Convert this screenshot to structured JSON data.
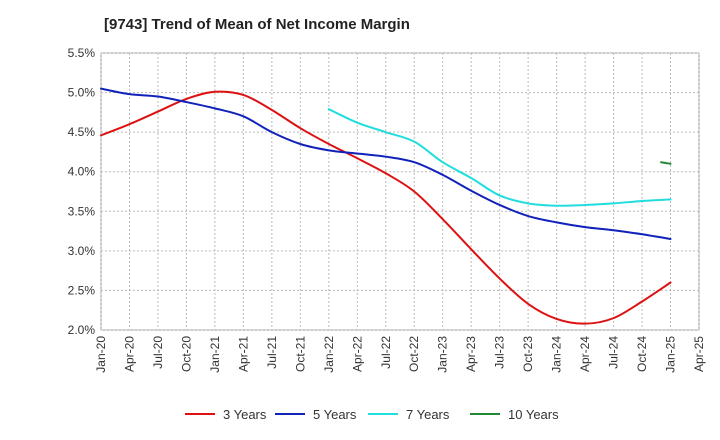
{
  "chart_data": {
    "type": "line",
    "title": "[9743]  Trend of Mean of Net Income Margin",
    "xlabel": "",
    "ylabel": "",
    "x_ticks": [
      "Jan-20",
      "Apr-20",
      "Jul-20",
      "Oct-20",
      "Jan-21",
      "Apr-21",
      "Jul-21",
      "Oct-21",
      "Jan-22",
      "Apr-22",
      "Jul-22",
      "Oct-22",
      "Jan-23",
      "Apr-23",
      "Jul-23",
      "Oct-23",
      "Jan-24",
      "Apr-24",
      "Jul-24",
      "Oct-24",
      "Jan-25",
      "Apr-25"
    ],
    "y_ticks": [
      "2.0%",
      "2.5%",
      "3.0%",
      "3.5%",
      "4.0%",
      "4.5%",
      "5.0%",
      "5.5%"
    ],
    "ylim": [
      2.0,
      5.5
    ],
    "grid": true,
    "legend_position": "bottom",
    "series": [
      {
        "name": "3 Years",
        "color": "#dd1111",
        "points": [
          [
            "Jan-20",
            4.46
          ],
          [
            "Apr-20",
            4.6
          ],
          [
            "Jul-20",
            4.76
          ],
          [
            "Oct-20",
            4.92
          ],
          [
            "Jan-21",
            5.01
          ],
          [
            "Apr-21",
            4.97
          ],
          [
            "Jul-21",
            4.78
          ],
          [
            "Oct-21",
            4.55
          ],
          [
            "Jan-22",
            4.35
          ],
          [
            "Apr-22",
            4.17
          ],
          [
            "Jul-22",
            3.98
          ],
          [
            "Oct-22",
            3.75
          ],
          [
            "Jan-23",
            3.4
          ],
          [
            "Apr-23",
            3.02
          ],
          [
            "Jul-23",
            2.65
          ],
          [
            "Oct-23",
            2.33
          ],
          [
            "Jan-24",
            2.14
          ],
          [
            "Apr-24",
            2.08
          ],
          [
            "Jul-24",
            2.15
          ],
          [
            "Oct-24",
            2.36
          ],
          [
            "Jan-25",
            2.6
          ]
        ]
      },
      {
        "name": "5 Years",
        "color": "#1122bb",
        "points": [
          [
            "Jan-20",
            5.05
          ],
          [
            "Apr-20",
            4.98
          ],
          [
            "Jul-20",
            4.95
          ],
          [
            "Oct-20",
            4.88
          ],
          [
            "Jan-21",
            4.8
          ],
          [
            "Apr-21",
            4.7
          ],
          [
            "Jul-21",
            4.5
          ],
          [
            "Oct-21",
            4.35
          ],
          [
            "Jan-22",
            4.27
          ],
          [
            "Apr-22",
            4.23
          ],
          [
            "Jul-22",
            4.19
          ],
          [
            "Oct-22",
            4.12
          ],
          [
            "Jan-23",
            3.96
          ],
          [
            "Apr-23",
            3.76
          ],
          [
            "Jul-23",
            3.58
          ],
          [
            "Oct-23",
            3.44
          ],
          [
            "Jan-24",
            3.36
          ],
          [
            "Apr-24",
            3.3
          ],
          [
            "Jul-24",
            3.26
          ],
          [
            "Oct-24",
            3.21
          ],
          [
            "Jan-25",
            3.15
          ]
        ]
      },
      {
        "name": "7 Years",
        "color": "#22dddd",
        "points": [
          [
            "Jan-22",
            4.79
          ],
          [
            "Apr-22",
            4.62
          ],
          [
            "Jul-22",
            4.5
          ],
          [
            "Oct-22",
            4.38
          ],
          [
            "Jan-23",
            4.12
          ],
          [
            "Apr-23",
            3.92
          ],
          [
            "Jul-23",
            3.7
          ],
          [
            "Oct-23",
            3.6
          ],
          [
            "Jan-24",
            3.57
          ],
          [
            "Apr-24",
            3.58
          ],
          [
            "Jul-24",
            3.6
          ],
          [
            "Oct-24",
            3.63
          ],
          [
            "Jan-25",
            3.65
          ]
        ]
      },
      {
        "name": "10 Years",
        "color": "#228833",
        "points": [
          [
            "Dec-24",
            4.12
          ],
          [
            "Jan-25",
            4.1
          ]
        ]
      }
    ]
  }
}
